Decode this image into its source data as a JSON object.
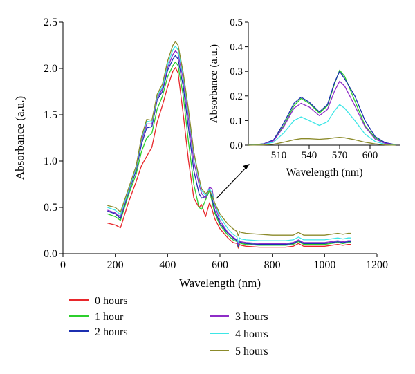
{
  "chart_data": [
    {
      "type": "line",
      "role": "main",
      "xlabel": "Wavelength (nm)",
      "ylabel": "Absorbance (a.u.)",
      "xlim": [
        0,
        1200
      ],
      "ylim": [
        0,
        2.5
      ],
      "xticks": [
        "0",
        "200",
        "400",
        "600",
        "800",
        "1000",
        "1200"
      ],
      "yticks": [
        "0.0",
        "0.5",
        "1.0",
        "1.5",
        "2.0",
        "2.5"
      ],
      "grid": false,
      "legend_position": "bottom",
      "series": [
        {
          "name": "0 hours",
          "color": "#e8272b",
          "x": [
            170,
            200,
            220,
            250,
            280,
            300,
            320,
            340,
            360,
            380,
            400,
            420,
            430,
            440,
            460,
            480,
            500,
            520,
            530,
            545,
            560,
            570,
            580,
            600,
            630,
            650,
            665,
            670,
            675,
            680,
            700,
            750,
            800,
            850,
            880,
            900,
            920,
            950,
            1000,
            1050,
            1070,
            1090,
            1100
          ],
          "y": [
            0.33,
            0.31,
            0.28,
            0.55,
            0.78,
            0.95,
            1.05,
            1.15,
            1.42,
            1.6,
            1.8,
            1.97,
            2.01,
            1.95,
            1.5,
            1.0,
            0.6,
            0.5,
            0.53,
            0.4,
            0.55,
            0.48,
            0.38,
            0.27,
            0.17,
            0.12,
            0.11,
            0.06,
            0.1,
            0.09,
            0.08,
            0.07,
            0.07,
            0.07,
            0.08,
            0.11,
            0.08,
            0.08,
            0.08,
            0.1,
            0.09,
            0.1,
            0.1
          ]
        },
        {
          "name": "1 hour",
          "color": "#2ccf2c",
          "x": [
            170,
            200,
            220,
            250,
            280,
            300,
            320,
            340,
            360,
            380,
            400,
            420,
            430,
            440,
            460,
            480,
            500,
            520,
            530,
            545,
            560,
            570,
            580,
            600,
            630,
            650,
            665,
            670,
            675,
            680,
            700,
            750,
            800,
            850,
            880,
            900,
            920,
            950,
            1000,
            1050,
            1070,
            1090,
            1100
          ],
          "y": [
            0.43,
            0.4,
            0.36,
            0.63,
            0.86,
            1.1,
            1.25,
            1.3,
            1.56,
            1.7,
            1.91,
            2.03,
            2.07,
            2.03,
            1.7,
            1.2,
            0.75,
            0.5,
            0.48,
            0.58,
            0.68,
            0.56,
            0.44,
            0.31,
            0.2,
            0.15,
            0.13,
            0.07,
            0.12,
            0.11,
            0.1,
            0.09,
            0.09,
            0.09,
            0.1,
            0.13,
            0.1,
            0.1,
            0.1,
            0.12,
            0.11,
            0.12,
            0.12
          ]
        },
        {
          "name": "2 hours",
          "color": "#1c2fb0",
          "x": [
            170,
            200,
            220,
            250,
            280,
            300,
            320,
            340,
            360,
            380,
            400,
            420,
            430,
            440,
            460,
            480,
            500,
            520,
            530,
            545,
            560,
            570,
            580,
            600,
            630,
            650,
            665,
            670,
            675,
            680,
            700,
            750,
            800,
            850,
            880,
            900,
            920,
            950,
            1000,
            1050,
            1070,
            1090,
            1100
          ],
          "y": [
            0.46,
            0.43,
            0.38,
            0.66,
            0.9,
            1.18,
            1.36,
            1.37,
            1.66,
            1.75,
            1.98,
            2.1,
            2.14,
            2.1,
            1.8,
            1.35,
            0.9,
            0.65,
            0.6,
            0.62,
            0.7,
            0.6,
            0.47,
            0.33,
            0.22,
            0.17,
            0.14,
            0.08,
            0.13,
            0.12,
            0.11,
            0.1,
            0.1,
            0.1,
            0.11,
            0.14,
            0.11,
            0.11,
            0.11,
            0.13,
            0.12,
            0.13,
            0.13
          ]
        },
        {
          "name": "3 hours",
          "color": "#8e2cc7",
          "x": [
            170,
            200,
            220,
            250,
            280,
            300,
            320,
            340,
            360,
            380,
            400,
            420,
            430,
            440,
            460,
            480,
            500,
            520,
            530,
            545,
            560,
            570,
            580,
            600,
            630,
            650,
            665,
            670,
            675,
            680,
            700,
            750,
            800,
            850,
            880,
            900,
            920,
            950,
            1000,
            1050,
            1070,
            1090,
            1100
          ],
          "y": [
            0.47,
            0.44,
            0.4,
            0.67,
            0.92,
            1.22,
            1.4,
            1.4,
            1.68,
            1.78,
            2.01,
            2.15,
            2.19,
            2.16,
            1.88,
            1.45,
            1.0,
            0.75,
            0.65,
            0.6,
            0.72,
            0.7,
            0.52,
            0.36,
            0.23,
            0.18,
            0.15,
            0.09,
            0.14,
            0.13,
            0.12,
            0.11,
            0.11,
            0.11,
            0.12,
            0.15,
            0.12,
            0.12,
            0.12,
            0.14,
            0.13,
            0.14,
            0.14
          ]
        },
        {
          "name": "4 hours",
          "color": "#3de6e6",
          "x": [
            170,
            200,
            220,
            250,
            280,
            300,
            320,
            340,
            360,
            380,
            400,
            420,
            430,
            440,
            460,
            480,
            500,
            520,
            530,
            545,
            560,
            570,
            580,
            600,
            630,
            650,
            665,
            670,
            675,
            680,
            700,
            750,
            800,
            850,
            880,
            900,
            920,
            950,
            1000,
            1050,
            1070,
            1090,
            1100
          ],
          "y": [
            0.5,
            0.47,
            0.42,
            0.68,
            0.93,
            1.24,
            1.43,
            1.42,
            1.7,
            1.8,
            2.04,
            2.2,
            2.24,
            2.2,
            1.92,
            1.52,
            1.08,
            0.8,
            0.68,
            0.63,
            0.7,
            0.66,
            0.54,
            0.4,
            0.27,
            0.21,
            0.18,
            0.12,
            0.17,
            0.16,
            0.15,
            0.14,
            0.14,
            0.14,
            0.15,
            0.18,
            0.15,
            0.15,
            0.15,
            0.17,
            0.16,
            0.17,
            0.17
          ]
        },
        {
          "name": "5 hours",
          "color": "#8b8a2a",
          "x": [
            170,
            200,
            220,
            250,
            280,
            300,
            320,
            340,
            360,
            380,
            400,
            420,
            430,
            440,
            460,
            480,
            500,
            520,
            530,
            545,
            560,
            570,
            580,
            600,
            630,
            650,
            665,
            670,
            675,
            680,
            700,
            750,
            800,
            850,
            880,
            900,
            920,
            950,
            1000,
            1050,
            1070,
            1090,
            1100
          ],
          "y": [
            0.52,
            0.5,
            0.45,
            0.7,
            0.95,
            1.26,
            1.45,
            1.44,
            1.72,
            1.83,
            2.08,
            2.25,
            2.29,
            2.25,
            1.95,
            1.55,
            1.1,
            0.82,
            0.7,
            0.65,
            0.68,
            0.63,
            0.55,
            0.43,
            0.32,
            0.27,
            0.24,
            0.19,
            0.24,
            0.23,
            0.22,
            0.21,
            0.2,
            0.2,
            0.2,
            0.23,
            0.2,
            0.2,
            0.2,
            0.22,
            0.21,
            0.22,
            0.22
          ]
        }
      ]
    },
    {
      "type": "line",
      "role": "inset",
      "xlabel": "Wavelength (nm)",
      "ylabel": "Absorbance (a.u.)",
      "xlim": [
        480,
        630
      ],
      "ylim": [
        0,
        0.5
      ],
      "xticks": [
        "510",
        "540",
        "570",
        "600"
      ],
      "yticks": [
        "0.0",
        "0.1",
        "0.2",
        "0.3",
        "0.4",
        "0.5"
      ],
      "grid": false,
      "series": [
        {
          "name": "1 hour",
          "color": "#2ccf2c",
          "x": [
            480,
            495,
            505,
            515,
            525,
            532,
            540,
            550,
            558,
            565,
            570,
            575,
            585,
            595,
            605,
            615,
            625
          ],
          "y": [
            0.0,
            0.005,
            0.02,
            0.08,
            0.16,
            0.19,
            0.17,
            0.13,
            0.16,
            0.25,
            0.305,
            0.28,
            0.18,
            0.08,
            0.03,
            0.008,
            0.002
          ]
        },
        {
          "name": "2 hours",
          "color": "#1c2fb0",
          "x": [
            480,
            495,
            505,
            515,
            525,
            532,
            540,
            550,
            558,
            565,
            570,
            575,
            585,
            595,
            605,
            615,
            625
          ],
          "y": [
            0.0,
            0.005,
            0.022,
            0.09,
            0.17,
            0.195,
            0.175,
            0.135,
            0.165,
            0.255,
            0.3,
            0.27,
            0.2,
            0.1,
            0.035,
            0.01,
            0.002
          ]
        },
        {
          "name": "3 hours",
          "color": "#8e2cc7",
          "x": [
            480,
            495,
            505,
            515,
            525,
            532,
            540,
            550,
            558,
            565,
            570,
            575,
            585,
            595,
            605,
            615,
            625
          ],
          "y": [
            0.0,
            0.004,
            0.018,
            0.075,
            0.15,
            0.17,
            0.155,
            0.12,
            0.145,
            0.22,
            0.26,
            0.24,
            0.16,
            0.075,
            0.025,
            0.007,
            0.002
          ]
        },
        {
          "name": "4 hours",
          "color": "#3de6e6",
          "x": [
            480,
            495,
            505,
            515,
            525,
            532,
            540,
            550,
            558,
            565,
            570,
            575,
            585,
            595,
            605,
            615,
            625
          ],
          "y": [
            0.0,
            0.003,
            0.012,
            0.05,
            0.1,
            0.115,
            0.1,
            0.08,
            0.095,
            0.14,
            0.165,
            0.15,
            0.1,
            0.045,
            0.015,
            0.004,
            0.001
          ]
        },
        {
          "name": "5 hours",
          "color": "#8b8a2a",
          "x": [
            480,
            495,
            505,
            515,
            525,
            532,
            540,
            550,
            558,
            565,
            570,
            575,
            585,
            595,
            605,
            615,
            625
          ],
          "y": [
            0.0,
            0.001,
            0.004,
            0.012,
            0.022,
            0.026,
            0.026,
            0.024,
            0.026,
            0.03,
            0.032,
            0.03,
            0.022,
            0.012,
            0.005,
            0.001,
            0.0
          ]
        }
      ]
    }
  ]
}
